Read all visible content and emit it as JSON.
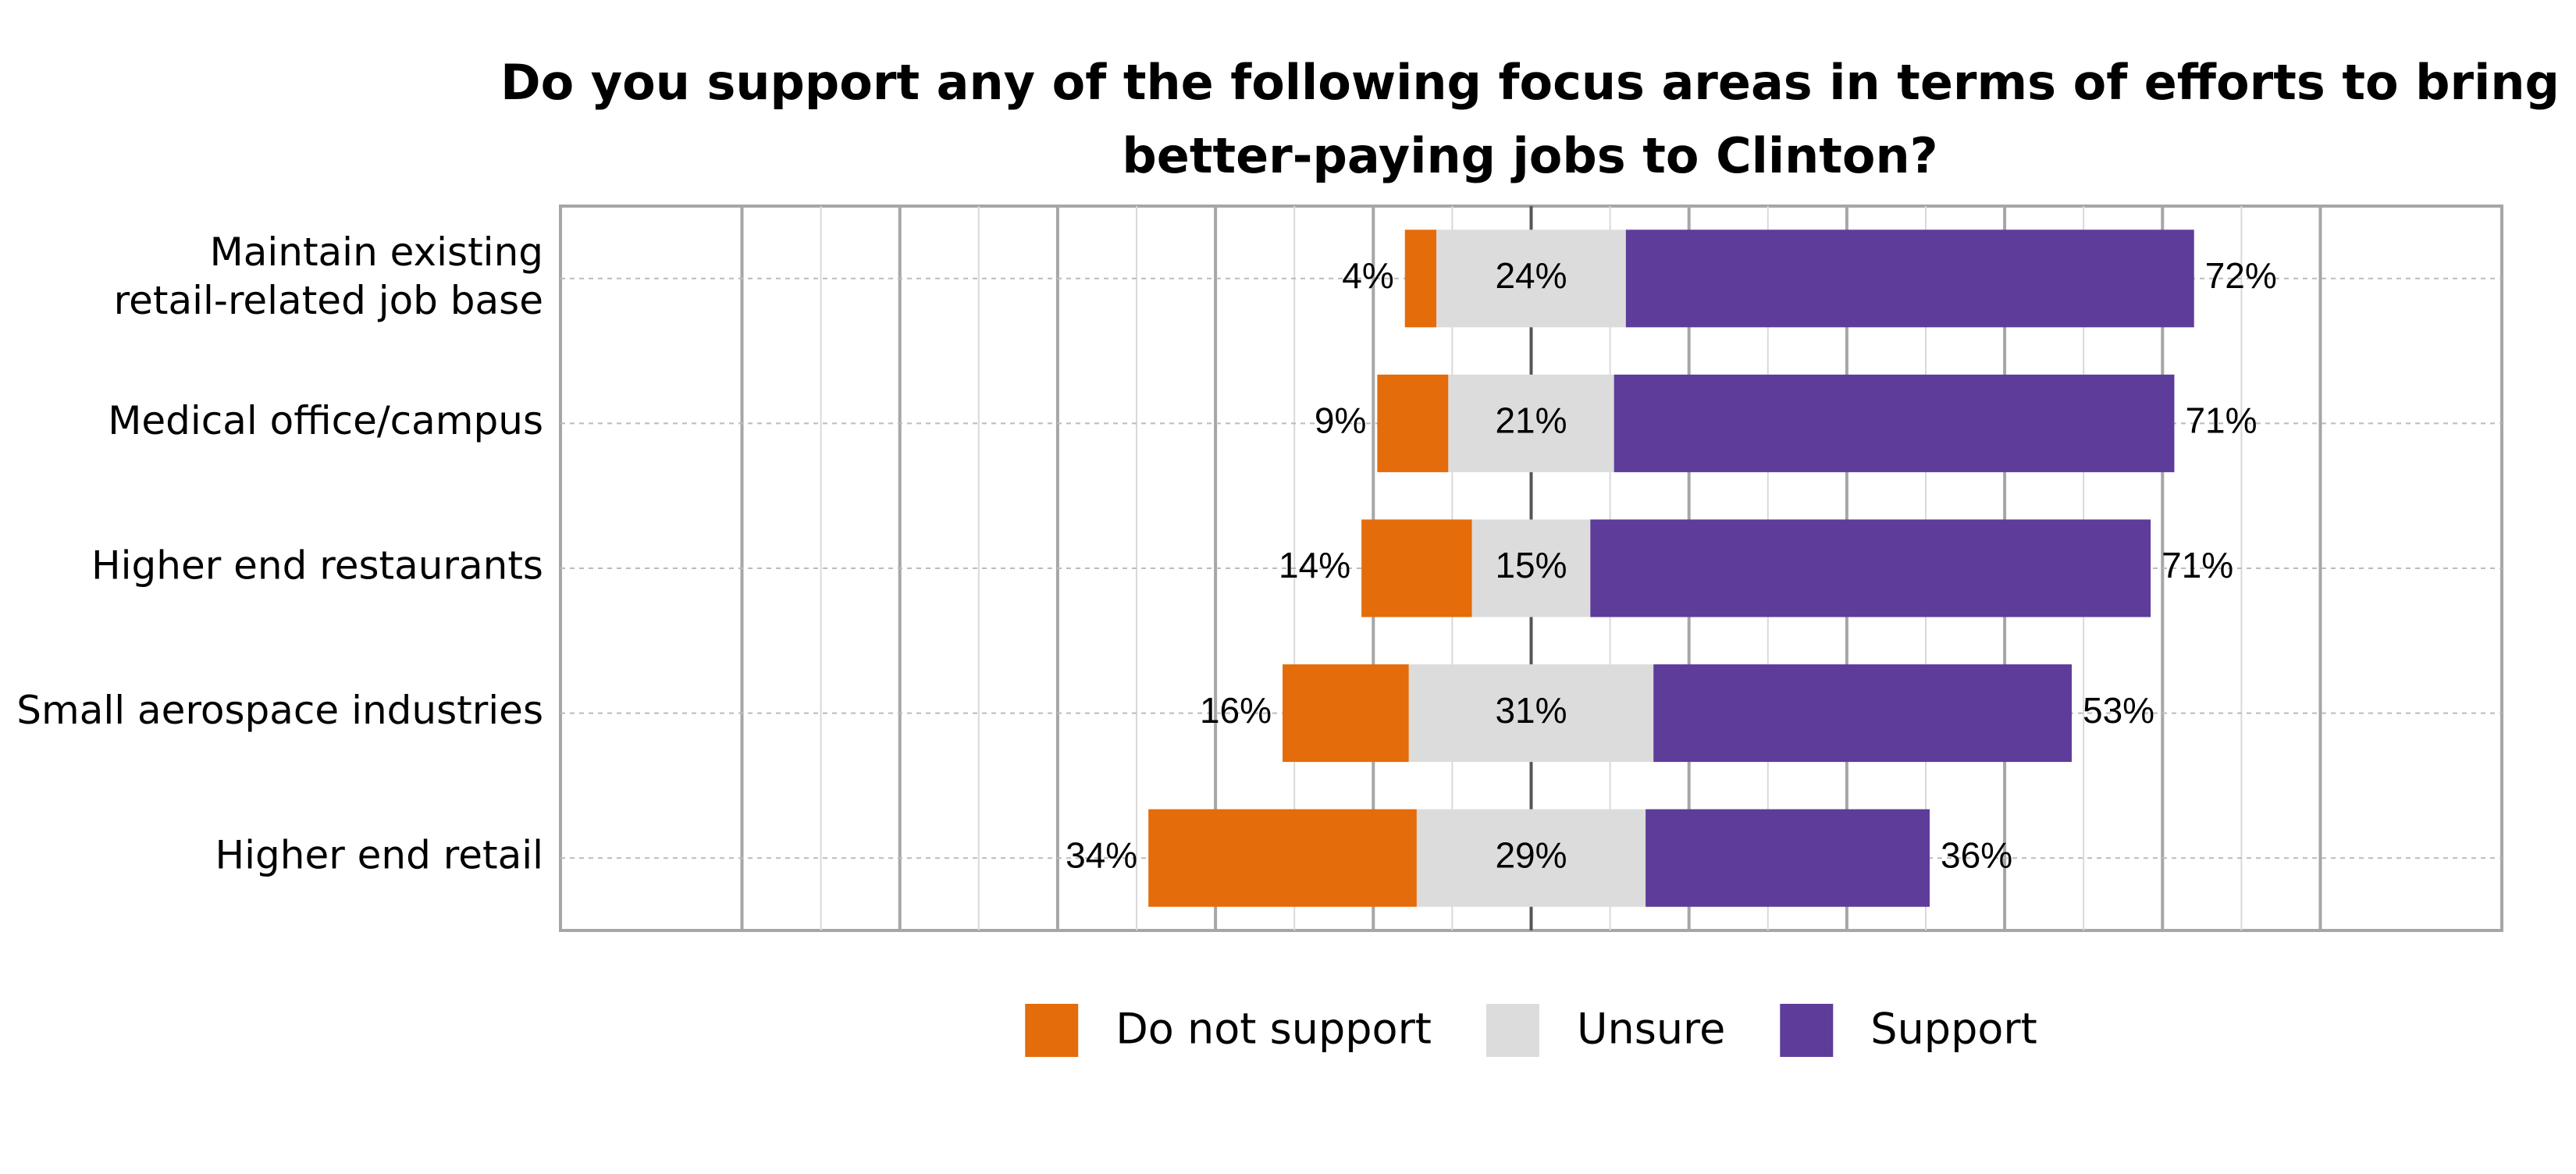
{
  "chart_data": {
    "type": "diverging-bar",
    "title": "Do you support any of the following focus areas in terms of efforts to bring\nbetter-paying jobs to Clinton?",
    "categories": [
      "Maintain existing\nretail-related job base",
      "Medical office/campus",
      "Higher end restaurants",
      "Small aerospace industries",
      "Higher end retail"
    ],
    "series": [
      {
        "name": "Do not support",
        "color": "#e46c0a",
        "values": [
          4,
          9,
          14,
          16,
          34
        ],
        "value_labels": [
          "4%",
          "9%",
          "14%",
          "16%",
          "34%"
        ]
      },
      {
        "name": "Unsure",
        "color": "#dcdcdc",
        "values": [
          24,
          21,
          15,
          31,
          29
        ],
        "value_labels": [
          "24%",
          "21%",
          "15%",
          "31%",
          "29%"
        ]
      },
      {
        "name": "Support",
        "color": "#5e3c9a",
        "values": [
          72,
          71,
          71,
          53,
          36
        ],
        "value_labels": [
          "72%",
          "71%",
          "71%",
          "53%",
          "36%"
        ]
      }
    ],
    "xlim": [
      -123,
      123
    ],
    "xticks": [
      -100,
      -90,
      -80,
      -70,
      -60,
      -50,
      -40,
      -30,
      -20,
      -10,
      0,
      10,
      20,
      30,
      40,
      50,
      60,
      70,
      80,
      90,
      100
    ],
    "grid": true,
    "legend": "bottom"
  }
}
